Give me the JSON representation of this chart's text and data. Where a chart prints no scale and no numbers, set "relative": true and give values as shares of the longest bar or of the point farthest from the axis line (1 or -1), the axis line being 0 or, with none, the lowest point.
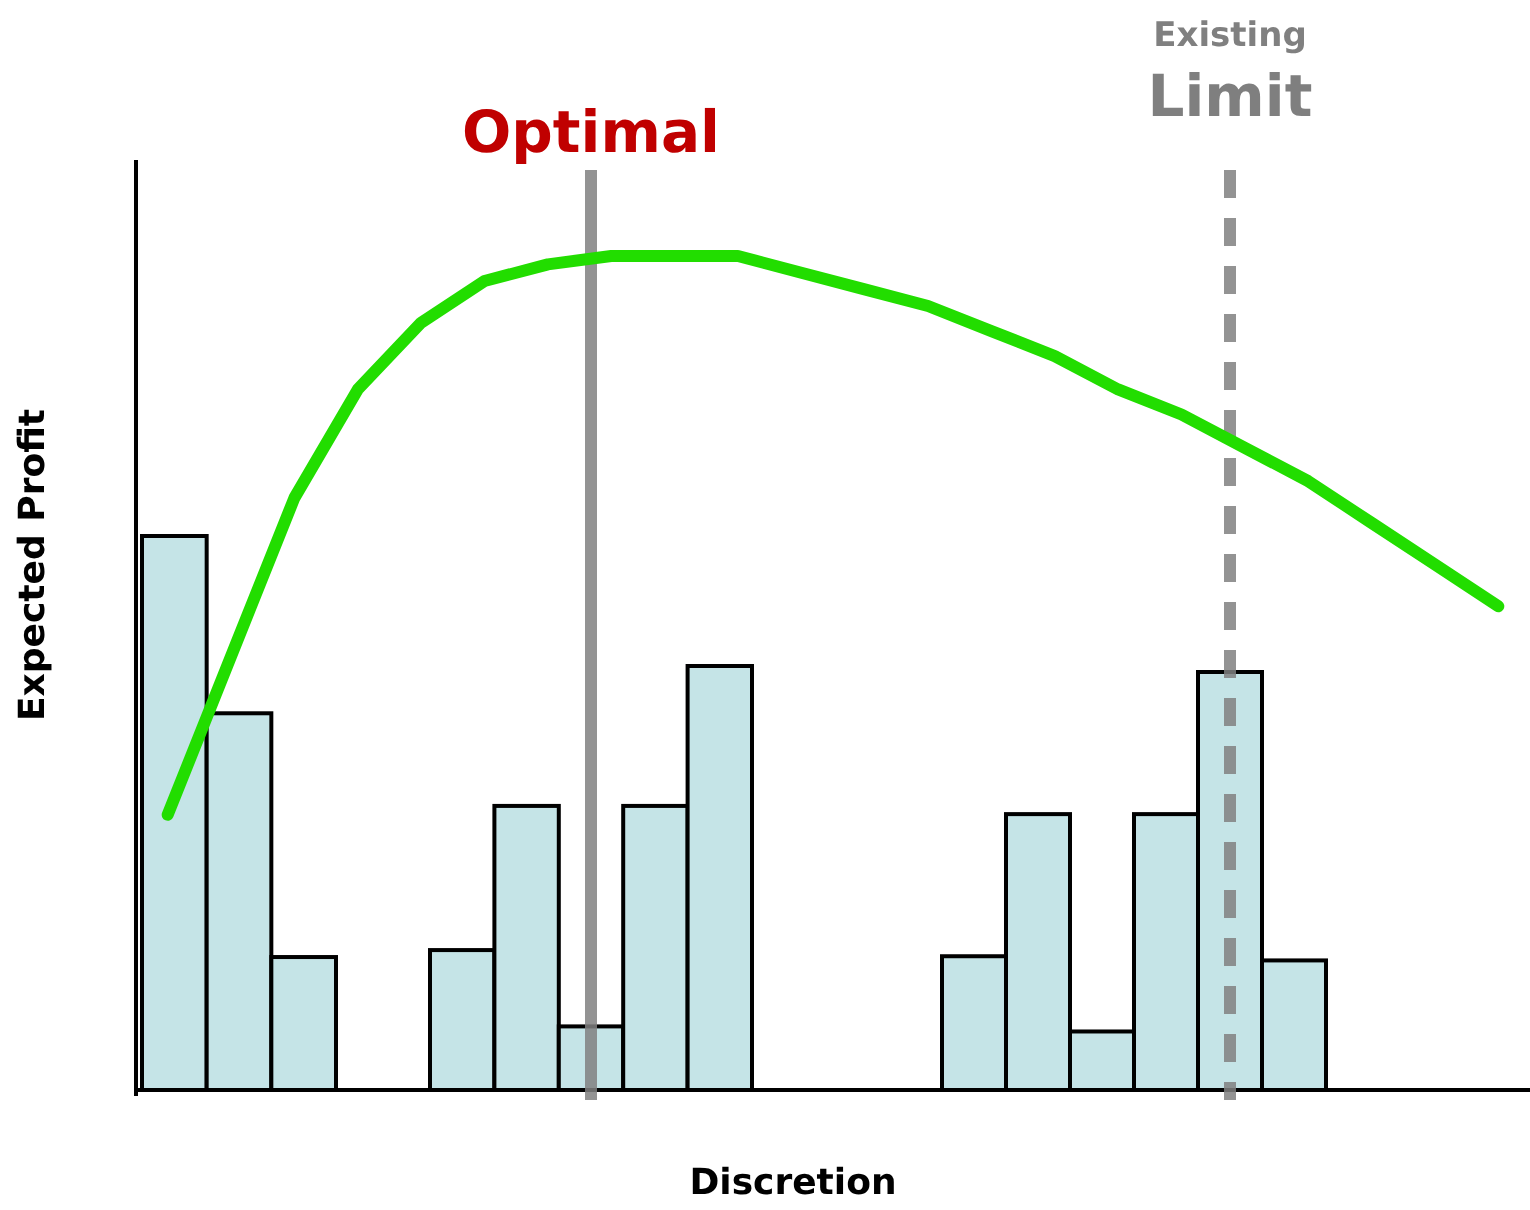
{
  "chart_data": [
    {
      "type": "bar",
      "relative": true,
      "tick_labels": false,
      "categories": [
        null,
        null,
        null
      ],
      "series": [
        {
          "color": "#c5e4e7",
          "values": [
            1,
            0.68,
            0.24
          ]
        }
      ]
    },
    {
      "type": "bar",
      "relative": true,
      "tick_labels": false,
      "categories": [
        null,
        null,
        null,
        null,
        null
      ],
      "series": [
        {
          "color": "#c5e4e7",
          "values": [
            0.33,
            0.67,
            0.15,
            0.67,
            1
          ]
        }
      ],
      "annotations": [
        "Optimal"
      ]
    },
    {
      "type": "bar",
      "relative": true,
      "tick_labels": false,
      "categories": [
        null,
        null,
        null,
        null,
        null,
        null
      ],
      "series": [
        {
          "color": "#c5e4e7",
          "values": [
            0.32,
            0.66,
            0.14,
            0.66,
            1,
            0.31
          ]
        }
      ],
      "annotations": [
        "Existing Limit"
      ]
    },
    {
      "type": "line",
      "relative": true,
      "xlabel": "Discretion",
      "ylabel": "Expected Profit",
      "tick_labels": false,
      "categories": [
        null,
        null,
        null,
        null,
        null,
        null,
        null,
        null,
        null,
        null,
        null,
        null,
        null,
        null,
        null,
        null,
        null,
        null,
        null,
        null,
        null,
        null
      ],
      "series": [
        {
          "color": "#22dd00",
          "values": [
            0.33,
            0.52,
            0.71,
            0.84,
            0.92,
            0.97,
            0.99,
            1,
            1,
            1,
            0.98,
            0.96,
            0.94,
            0.91,
            0.88,
            0.84,
            0.81,
            0.77,
            0.73,
            0.68,
            0.63,
            0.58
          ]
        }
      ]
    }
  ]
}
